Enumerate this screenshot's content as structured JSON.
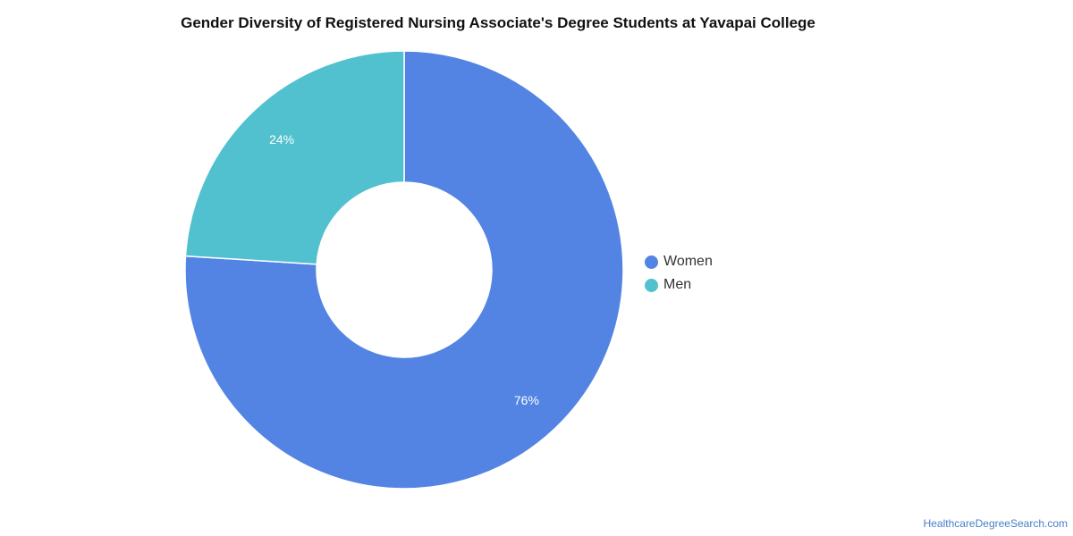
{
  "chart_data": {
    "type": "pie",
    "title": "Gender Diversity of Registered Nursing Associate's Degree Students at Yavapai College",
    "categories": [
      "Women",
      "Men"
    ],
    "values": [
      76,
      24
    ],
    "value_labels": [
      "76%",
      "24%"
    ],
    "colors": [
      "#5384e3",
      "#51c1cf"
    ],
    "donut": true,
    "legend_position": "right"
  },
  "legend": {
    "items": [
      {
        "label": "Women",
        "color": "#5384e3"
      },
      {
        "label": "Men",
        "color": "#51c1cf"
      }
    ]
  },
  "source": "HealthcareDegreeSearch.com"
}
